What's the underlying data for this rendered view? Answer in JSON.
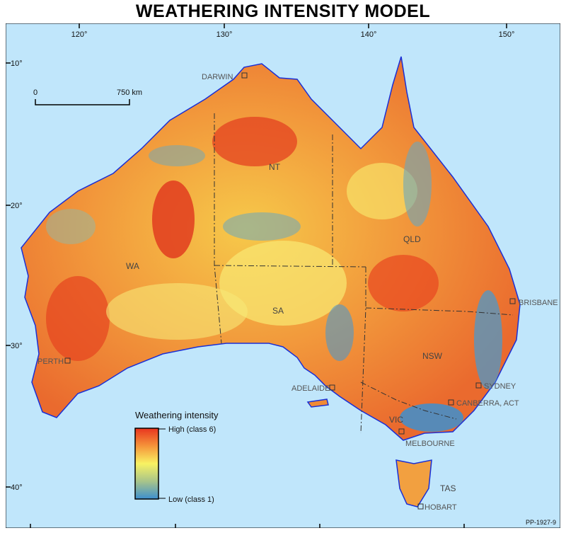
{
  "title": "WEATHERING INTENSITY MODEL",
  "longitude_ticks": [
    "120°",
    "130°",
    "140°",
    "150°"
  ],
  "latitude_ticks": [
    "10°",
    "20°",
    "30°",
    "40°"
  ],
  "scale_bar": {
    "start": "0",
    "end": "750 km"
  },
  "states": [
    "WA",
    "NT",
    "SA",
    "QLD",
    "NSW",
    "VIC",
    "TAS"
  ],
  "cities": [
    "DARWIN",
    "BRISBANE",
    "PERTH",
    "ADELAIDE",
    "SYDNEY",
    "CANBERRA, ACT",
    "MELBOURNE",
    "HOBART"
  ],
  "legend": {
    "title": "Weathering intensity",
    "high": "High (class 6)",
    "low": "Low (class 1)"
  },
  "colors": {
    "ocean": "#c0e6fb",
    "coast": "#1a2fd6",
    "high": "#e8351f",
    "mid": "#f8f262",
    "low": "#3d8fcf"
  },
  "reference": "PP-1927-9"
}
